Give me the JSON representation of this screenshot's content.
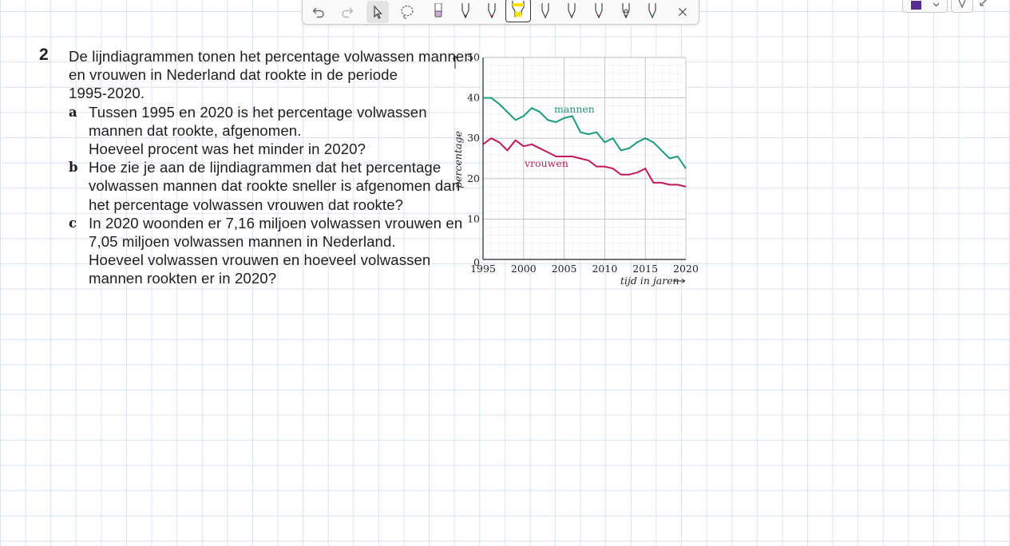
{
  "toolbar": {
    "tools": [
      {
        "name": "undo-icon",
        "color": "#666666"
      },
      {
        "name": "redo-icon",
        "color": "#b5b5b5"
      },
      {
        "name": "select-cursor-icon",
        "color": "#444444"
      },
      {
        "name": "lasso-icon",
        "color": "#666666"
      },
      {
        "name": "eraser-icon",
        "color": "#b07ac0"
      },
      {
        "name": "pen-black-icon",
        "color": "#222222"
      },
      {
        "name": "pen-red-icon",
        "color": "#c8102e"
      },
      {
        "name": "highlighter-yellow-icon",
        "color": "#f2e600"
      },
      {
        "name": "pen-teal-icon",
        "color": "#3a8fa8"
      },
      {
        "name": "pen-green-icon",
        "color": "#2e8b3a"
      },
      {
        "name": "pen-magenta-icon",
        "color": "#b01e6e"
      },
      {
        "name": "pen-dark-icon",
        "color": "#333333"
      },
      {
        "name": "pen-green2-icon",
        "color": "#3aa848"
      }
    ],
    "close_icon": "close-icon",
    "color_swatch": "#5b2c8f"
  },
  "exercise": {
    "number": "2",
    "intro_lines": [
      "De lijndiagrammen tonen het percentage volwassen mannen",
      "en vrouwen in Nederland dat rookte in de periode",
      "1995-2020."
    ],
    "parts": [
      {
        "letter": "a",
        "lines": [
          "Tussen 1995 en 2020 is het percentage volwassen",
          "mannen dat rookte, afgenomen.",
          "Hoeveel procent was het minder in 2020?"
        ]
      },
      {
        "letter": "b",
        "lines": [
          "Hoe zie je aan de lijndiagrammen dat het percentage",
          "volwassen mannen dat rookte sneller is afgenomen dan",
          "het percentage volwassen vrouwen dat rookte?"
        ]
      },
      {
        "letter": "c",
        "lines": [
          "In 2020 woonden er 7,16 miljoen volwassen vrouwen en",
          "7,05 miljoen volwassen mannen in Nederland.",
          "Hoeveel volwassen vrouwen en hoeveel volwassen",
          "mannen rookten er in 2020?"
        ]
      }
    ]
  },
  "chart_data": {
    "type": "line",
    "ylabel": "percentage",
    "xlabel": "tijd in jaren",
    "ylim": [
      0,
      50
    ],
    "xlim": [
      1995,
      2020
    ],
    "yticks": [
      "0",
      "10",
      "20",
      "30",
      "40",
      "50"
    ],
    "xticks": [
      "1995",
      "2000",
      "2005",
      "2010",
      "2015",
      "2020"
    ],
    "grid": true,
    "series": [
      {
        "name": "mannen",
        "color": "#1a9a7e",
        "x": [
          1995,
          1996,
          1997,
          1998,
          1999,
          2000,
          2001,
          2002,
          2003,
          2004,
          2005,
          2006,
          2007,
          2008,
          2009,
          2010,
          2011,
          2012,
          2013,
          2014,
          2015,
          2016,
          2017,
          2018,
          2019,
          2020
        ],
        "y": [
          40,
          40,
          38.5,
          36.5,
          34.5,
          35.5,
          37.5,
          36.5,
          34.5,
          34,
          35,
          35.5,
          31.5,
          31,
          31.5,
          29,
          30,
          27,
          27.5,
          29,
          30,
          29,
          27,
          25,
          25.5,
          22.5
        ]
      },
      {
        "name": "vrouwen",
        "color": "#c2185b",
        "x": [
          1995,
          1996,
          1997,
          1998,
          1999,
          2000,
          2001,
          2002,
          2003,
          2004,
          2005,
          2006,
          2007,
          2008,
          2009,
          2010,
          2011,
          2012,
          2013,
          2014,
          2015,
          2016,
          2017,
          2018,
          2019,
          2020
        ],
        "y": [
          28.5,
          30,
          29,
          27,
          29.5,
          28,
          28.5,
          27.5,
          26.5,
          25.5,
          25.5,
          25.5,
          25,
          24.5,
          23,
          23,
          22.5,
          21,
          21,
          21.5,
          22.5,
          19,
          19,
          18.5,
          18.5,
          18
        ]
      }
    ]
  }
}
